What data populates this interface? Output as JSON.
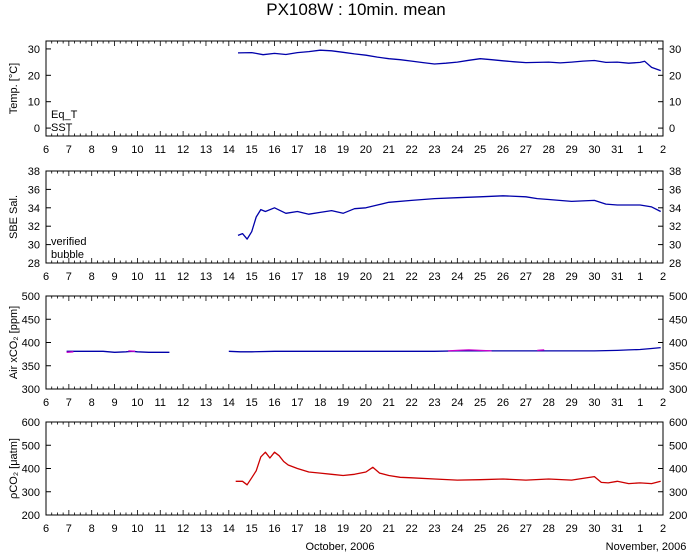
{
  "title": "PX108W : 10min. mean",
  "footer": {
    "month_left": "October, 2006",
    "month_right": "November, 2006"
  },
  "x_tick_labels": [
    "6",
    "7",
    "8",
    "9",
    "10",
    "11",
    "12",
    "13",
    "14",
    "15",
    "16",
    "17",
    "18",
    "19",
    "20",
    "21",
    "22",
    "23",
    "24",
    "25",
    "26",
    "27",
    "28",
    "29",
    "30",
    "31",
    "1",
    "2"
  ],
  "colors": {
    "red": "#cc0000",
    "blue": "#0000aa",
    "magenta": "#cc00cc"
  },
  "chart_data": [
    {
      "type": "line",
      "ylabel": "Temp. [°C]",
      "ylim": [
        -3,
        33
      ],
      "y_ticks": [
        0,
        10,
        20,
        30
      ],
      "legend": [
        "Eq_T",
        "SST"
      ],
      "legend_placement": "bottom-left",
      "series": [
        {
          "name": "SST",
          "color": "#0000aa",
          "x": [
            14.4,
            15,
            15.5,
            16,
            16.5,
            17,
            17.5,
            18,
            18.5,
            19,
            19.5,
            20,
            20.5,
            21,
            21.5,
            22,
            22.5,
            23,
            23.5,
            24,
            24.5,
            25,
            25.5,
            26,
            26.5,
            27,
            27.5,
            28,
            28.5,
            29,
            29.5,
            30,
            30.5,
            31,
            31.5,
            32,
            32.2,
            32.5,
            32.9
          ],
          "y": [
            28.5,
            28.6,
            27.8,
            28.3,
            27.9,
            28.6,
            29.0,
            29.5,
            29.3,
            28.7,
            28.1,
            27.6,
            26.9,
            26.3,
            25.9,
            25.4,
            24.8,
            24.3,
            24.6,
            25.0,
            25.7,
            26.3,
            25.9,
            25.5,
            25.1,
            24.8,
            24.9,
            25.0,
            24.7,
            25.0,
            25.4,
            25.6,
            24.9,
            25.0,
            24.6,
            24.9,
            25.3,
            23.0,
            21.8
          ]
        }
      ]
    },
    {
      "type": "line",
      "ylabel": "SBE Sal.",
      "ylim": [
        28,
        38
      ],
      "y_ticks": [
        28,
        30,
        32,
        34,
        36,
        38
      ],
      "legend": [
        "verified",
        "bubble"
      ],
      "legend_placement": "bottom-left",
      "series": [
        {
          "name": "verified",
          "color": "#0000aa",
          "x": [
            14.4,
            14.6,
            14.8,
            15.0,
            15.2,
            15.4,
            15.6,
            16,
            16.5,
            17,
            17.5,
            18,
            18.5,
            19,
            19.5,
            20,
            20.5,
            21,
            22,
            23,
            24,
            25,
            26,
            27,
            27.5,
            28,
            29,
            30,
            30.5,
            31,
            32,
            32.5,
            32.9
          ],
          "y": [
            31.0,
            31.2,
            30.6,
            31.4,
            33.0,
            33.8,
            33.6,
            34.0,
            33.4,
            33.6,
            33.3,
            33.5,
            33.7,
            33.4,
            33.9,
            34.0,
            34.3,
            34.6,
            34.8,
            35.0,
            35.1,
            35.2,
            35.3,
            35.2,
            35.0,
            34.9,
            34.7,
            34.8,
            34.4,
            34.3,
            34.3,
            34.1,
            33.6
          ]
        }
      ]
    },
    {
      "type": "line",
      "ylabel": "Air xCO₂ [ppm]",
      "ylim": [
        300,
        500
      ],
      "y_ticks": [
        300,
        350,
        400,
        450,
        500
      ],
      "series": [
        {
          "name": "verified",
          "color": "#0000aa",
          "segments": [
            {
              "x": [
                6.9,
                7.5,
                8,
                8.5,
                9,
                9.5,
                9.8,
                10,
                10.5,
                11,
                11.4
              ],
              "y": [
                381,
                381,
                381,
                381,
                379,
                380,
                381,
                380,
                379,
                379,
                379
              ]
            },
            {
              "x": [
                14.0,
                14.5,
                15,
                16,
                17,
                18,
                19,
                20,
                21,
                22,
                23,
                24,
                25,
                26,
                27,
                28,
                29,
                30,
                31,
                31.5,
                32,
                32.5,
                32.9
              ],
              "y": [
                381,
                380,
                380,
                381,
                381,
                381,
                381,
                381,
                381,
                381,
                381,
                382,
                382,
                382,
                382,
                382,
                382,
                382,
                383,
                384,
                385,
                387,
                389
              ]
            }
          ]
        },
        {
          "name": "bubble",
          "color": "#cc00cc",
          "segments": [
            {
              "x": [
                6.9,
                7.2
              ],
              "y": [
                379,
                380
              ]
            },
            {
              "x": [
                9.6,
                9.9
              ],
              "y": [
                382,
                381
              ]
            },
            {
              "x": [
                23.6,
                24,
                24.5,
                25,
                25.5
              ],
              "y": [
                382,
                383,
                384,
                383,
                382
              ]
            },
            {
              "x": [
                27.5,
                27.8
              ],
              "y": [
                383,
                384
              ]
            }
          ]
        }
      ]
    },
    {
      "type": "line",
      "ylabel": "ρCO₂ [μatm]",
      "ylim": [
        200,
        600
      ],
      "y_ticks": [
        200,
        300,
        400,
        500,
        600
      ],
      "series": [
        {
          "name": "pCO2",
          "color": "#cc0000",
          "x": [
            14.3,
            14.6,
            14.8,
            15.0,
            15.2,
            15.4,
            15.6,
            15.8,
            16.0,
            16.2,
            16.4,
            16.6,
            17,
            17.5,
            18,
            18.5,
            19,
            19.5,
            20,
            20.3,
            20.6,
            21,
            21.5,
            22,
            23,
            24,
            25,
            26,
            27,
            28,
            29,
            30,
            30.3,
            30.6,
            31,
            31.5,
            32,
            32.5,
            32.9
          ],
          "y": [
            345,
            345,
            330,
            360,
            390,
            450,
            470,
            445,
            470,
            455,
            430,
            415,
            400,
            385,
            380,
            375,
            370,
            375,
            385,
            405,
            380,
            370,
            362,
            360,
            355,
            350,
            352,
            355,
            350,
            355,
            350,
            365,
            340,
            338,
            345,
            335,
            338,
            335,
            345
          ]
        }
      ]
    }
  ]
}
